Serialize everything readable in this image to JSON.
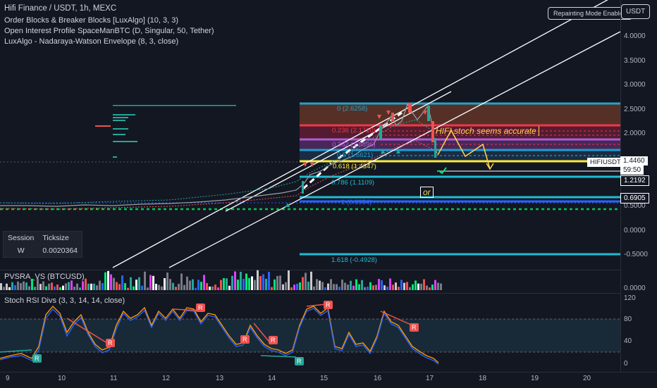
{
  "header": {
    "title": "Hifi Finance / USDT, 1h, MEXC",
    "indicators": [
      "Order Blocks & Breaker Blocks [LuxAlgo] (10, 3, 3)",
      "Open Interest Profile SpaceManBTC (D, Singular, 50, Tether)",
      "LuxAlgo - Nadaraya-Watson Envelope (8, 3, close)"
    ],
    "repainting_button": "Repainting Mode Enabled",
    "currency_button": "USDT"
  },
  "price_axis": {
    "ticks": [
      "4.0000",
      "3.5000",
      "3.0000",
      "2.5000",
      "2.0000",
      "1.5000",
      "1.0000",
      "0.5000",
      "0.0000",
      "-0.5000"
    ],
    "symbol_tag": "HIFIUSDT",
    "last_price": "1.4460",
    "countdown": "59:50",
    "level_1": "1.2192",
    "level_2": "0.6905"
  },
  "fib": {
    "levels": [
      {
        "label": "0 (2.6258)",
        "color": "#26a2c5"
      },
      {
        "label": "0.236 (2.1710)",
        "color": "#f23645"
      },
      {
        "label": "0.382 (1.8896)",
        "color": "#b15cd6"
      },
      {
        "label": "0.5 (1.6621)",
        "color": "#1e9fd4"
      },
      {
        "label": "0.618 (1.4347)",
        "color": "#ffeb3b"
      },
      {
        "label": "0.786 (1.1109)",
        "color": "#1fbcd3"
      },
      {
        "label": "1 (0.6984)",
        "color": "#2962ff"
      },
      {
        "label": "1.618 (-0.4928)",
        "color": "#1fbcd3"
      }
    ]
  },
  "annotations": {
    "note": "HIFI stoch seems accurate",
    "or": "or"
  },
  "session_table": {
    "headers": [
      "Session",
      "Ticksize"
    ],
    "row": [
      "W",
      "0.0020364"
    ]
  },
  "volume_pane": {
    "title": "PVSRA_VS (BTCUSD)",
    "tick": "0.0000"
  },
  "stoch_pane": {
    "title": "Stoch RSI Divs (3, 3, 14, 14, close)",
    "ticks": [
      "120",
      "80",
      "40",
      "0"
    ],
    "markers": [
      "R",
      "R",
      "R",
      "R",
      "R",
      "R",
      "R",
      "R"
    ],
    "green_markers": [
      "R",
      "R"
    ]
  },
  "time_axis": {
    "ticks": [
      "9",
      "10",
      "11",
      "12",
      "13",
      "14",
      "15",
      "16",
      "17",
      "18",
      "19",
      "20"
    ]
  },
  "colors": {
    "background": "#131722",
    "up": "#26a69a",
    "down": "#ef5350",
    "k_line": "#2962ff",
    "d_line": "#ff9800"
  }
}
